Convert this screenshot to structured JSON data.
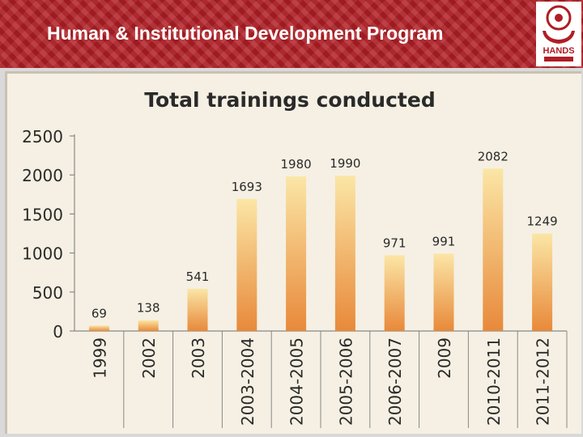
{
  "header": {
    "title": "Human & Institutional Development Program",
    "logo_text": "HANDS",
    "brand_color": "#b01e24"
  },
  "chart_data": {
    "type": "bar",
    "title": "Total trainings conducted",
    "xlabel": "",
    "ylabel": "",
    "categories": [
      "1999",
      "2002",
      "2003",
      "2003-2004",
      "2004-2005",
      "2005-2006",
      "2006-2007",
      "2009",
      "2010-2011",
      "2011-2012"
    ],
    "values": [
      69,
      138,
      541,
      1693,
      1980,
      1990,
      971,
      991,
      2082,
      1249
    ],
    "ylim": [
      0,
      2500
    ],
    "yticks": [
      0,
      500,
      1000,
      1500,
      2000,
      2500
    ],
    "grid": false,
    "legend": "none",
    "bar_color_top": "#fbe6a6",
    "bar_color_bottom": "#e8893a"
  }
}
